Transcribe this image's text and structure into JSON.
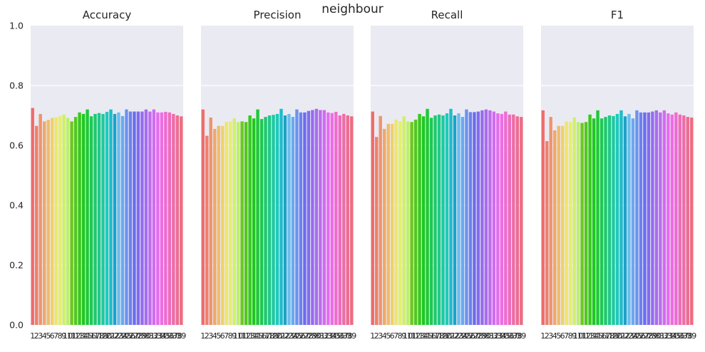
{
  "figure": {
    "suptitle": "neighbour"
  },
  "chart_data": [
    {
      "type": "bar",
      "title": "Accuracy",
      "categories": [
        "1",
        "2",
        "3",
        "4",
        "5",
        "6",
        "7",
        "8",
        "9",
        "10",
        "11",
        "12",
        "13",
        "14",
        "15",
        "16",
        "17",
        "18",
        "19",
        "20",
        "21",
        "22",
        "23",
        "24",
        "25",
        "26",
        "27",
        "28",
        "29",
        "30",
        "31",
        "32",
        "33",
        "34",
        "35",
        "36",
        "37",
        "38",
        "39"
      ],
      "values": [
        0.725,
        0.665,
        0.705,
        0.68,
        0.685,
        0.692,
        0.693,
        0.698,
        0.703,
        0.692,
        0.68,
        0.695,
        0.71,
        0.705,
        0.72,
        0.697,
        0.705,
        0.708,
        0.705,
        0.712,
        0.72,
        0.705,
        0.71,
        0.698,
        0.72,
        0.713,
        0.713,
        0.713,
        0.713,
        0.72,
        0.713,
        0.72,
        0.71,
        0.71,
        0.712,
        0.71,
        0.705,
        0.7,
        0.697
      ],
      "ylim": [
        0,
        1.0
      ],
      "yticks": [
        "0.0",
        "0.2",
        "0.4",
        "0.6",
        "0.8",
        "1.0"
      ]
    },
    {
      "type": "bar",
      "title": "Precision",
      "categories": [
        "1",
        "2",
        "3",
        "4",
        "5",
        "6",
        "7",
        "8",
        "9",
        "10",
        "11",
        "12",
        "13",
        "14",
        "15",
        "16",
        "17",
        "18",
        "19",
        "20",
        "21",
        "22",
        "23",
        "24",
        "25",
        "26",
        "27",
        "28",
        "29",
        "30",
        "31",
        "32",
        "33",
        "34",
        "35",
        "36",
        "37",
        "38",
        "39"
      ],
      "values": [
        0.72,
        0.632,
        0.693,
        0.655,
        0.665,
        0.665,
        0.678,
        0.68,
        0.69,
        0.678,
        0.68,
        0.678,
        0.7,
        0.69,
        0.72,
        0.688,
        0.695,
        0.7,
        0.702,
        0.705,
        0.722,
        0.7,
        0.705,
        0.695,
        0.72,
        0.71,
        0.71,
        0.715,
        0.718,
        0.722,
        0.718,
        0.718,
        0.71,
        0.708,
        0.712,
        0.7,
        0.705,
        0.7,
        0.697
      ],
      "ylim": [
        0,
        1.0
      ],
      "yticks": [
        "0.0",
        "0.2",
        "0.4",
        "0.6",
        "0.8",
        "1.0"
      ]
    },
    {
      "type": "bar",
      "title": "Recall",
      "categories": [
        "1",
        "2",
        "3",
        "4",
        "5",
        "6",
        "7",
        "8",
        "9",
        "10",
        "11",
        "12",
        "13",
        "14",
        "15",
        "16",
        "17",
        "18",
        "19",
        "20",
        "21",
        "22",
        "23",
        "24",
        "25",
        "26",
        "27",
        "28",
        "29",
        "30",
        "31",
        "32",
        "33",
        "34",
        "35",
        "36",
        "37",
        "38",
        "39"
      ],
      "values": [
        0.713,
        0.628,
        0.698,
        0.655,
        0.672,
        0.672,
        0.686,
        0.68,
        0.697,
        0.68,
        0.678,
        0.686,
        0.705,
        0.697,
        0.722,
        0.692,
        0.7,
        0.703,
        0.7,
        0.707,
        0.722,
        0.7,
        0.707,
        0.695,
        0.72,
        0.711,
        0.711,
        0.713,
        0.717,
        0.72,
        0.717,
        0.713,
        0.707,
        0.705,
        0.713,
        0.703,
        0.703,
        0.697,
        0.695
      ],
      "ylim": [
        0,
        1.0
      ],
      "yticks": [
        "0.0",
        "0.2",
        "0.4",
        "0.6",
        "0.8",
        "1.0"
      ]
    },
    {
      "type": "bar",
      "title": "F1",
      "categories": [
        "1",
        "2",
        "3",
        "4",
        "5",
        "6",
        "7",
        "8",
        "9",
        "10",
        "11",
        "12",
        "13",
        "14",
        "15",
        "16",
        "17",
        "18",
        "19",
        "20",
        "21",
        "22",
        "23",
        "24",
        "25",
        "26",
        "27",
        "28",
        "29",
        "30",
        "31",
        "32",
        "33",
        "34",
        "35",
        "36",
        "37",
        "38",
        "39"
      ],
      "values": [
        0.717,
        0.614,
        0.695,
        0.65,
        0.665,
        0.665,
        0.68,
        0.678,
        0.693,
        0.678,
        0.675,
        0.678,
        0.703,
        0.69,
        0.717,
        0.69,
        0.695,
        0.7,
        0.698,
        0.705,
        0.717,
        0.697,
        0.705,
        0.69,
        0.717,
        0.71,
        0.71,
        0.71,
        0.713,
        0.717,
        0.71,
        0.717,
        0.707,
        0.703,
        0.71,
        0.703,
        0.7,
        0.695,
        0.693
      ],
      "ylim": [
        0,
        1.0
      ],
      "yticks": [
        "0.0",
        "0.2",
        "0.4",
        "0.6",
        "0.8",
        "1.0"
      ]
    }
  ]
}
